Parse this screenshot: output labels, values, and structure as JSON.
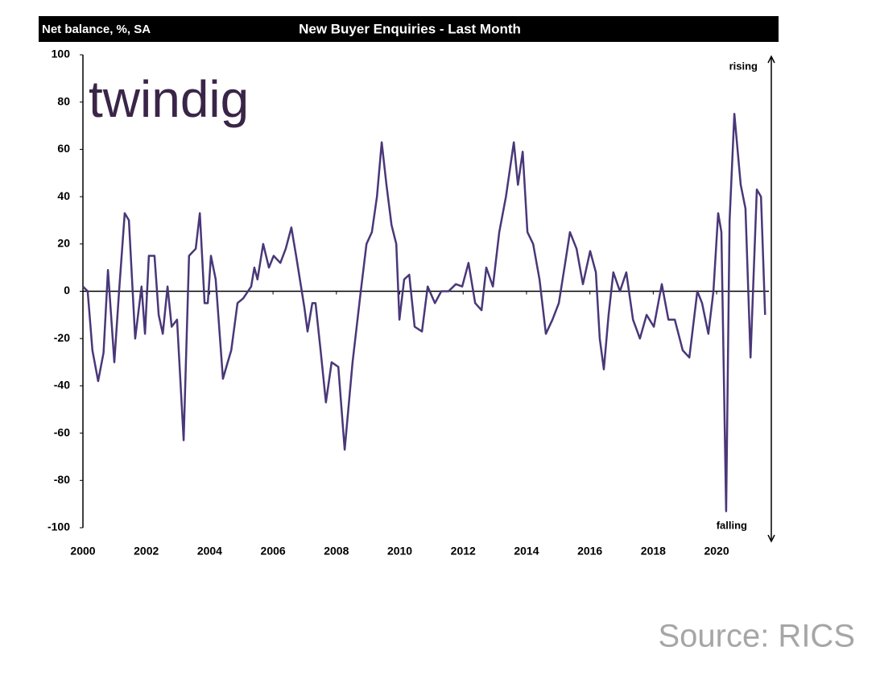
{
  "chart_data": {
    "type": "line",
    "title": "New Buyer Enquiries - Last Month",
    "y_label": "Net balance, %, SA",
    "annotations": [
      "rising",
      "falling"
    ],
    "x": [
      2000.0,
      2000.15,
      2000.3,
      2000.48,
      2000.65,
      2000.79,
      2000.99,
      2001.14,
      2001.32,
      2001.45,
      2001.65,
      2001.85,
      2001.96,
      2002.08,
      2002.26,
      2002.39,
      2002.52,
      2002.67,
      2002.8,
      2002.97,
      2003.18,
      2003.35,
      2003.56,
      2003.69,
      2003.84,
      2003.94,
      2004.04,
      2004.19,
      2004.42,
      2004.57,
      2004.68,
      2004.88,
      2005.06,
      2005.31,
      2005.41,
      2005.51,
      2005.69,
      2005.87,
      2006.02,
      2006.23,
      2006.4,
      2006.58,
      2006.73,
      2006.99,
      2007.09,
      2007.24,
      2007.34,
      2007.5,
      2007.67,
      2007.85,
      2008.06,
      2008.26,
      2008.51,
      2008.77,
      2008.95,
      2009.12,
      2009.28,
      2009.43,
      2009.58,
      2009.74,
      2009.89,
      2009.99,
      2010.14,
      2010.3,
      2010.47,
      2010.7,
      2010.88,
      2011.11,
      2011.31,
      2011.54,
      2011.77,
      2011.97,
      2012.17,
      2012.38,
      2012.58,
      2012.73,
      2012.94,
      2013.14,
      2013.35,
      2013.6,
      2013.73,
      2013.88,
      2014.03,
      2014.21,
      2014.41,
      2014.61,
      2014.82,
      2015.02,
      2015.22,
      2015.37,
      2015.58,
      2015.78,
      2016.01,
      2016.19,
      2016.31,
      2016.44,
      2016.59,
      2016.74,
      2016.95,
      2017.15,
      2017.36,
      2017.58,
      2017.79,
      2018.02,
      2018.27,
      2018.48,
      2018.68,
      2018.93,
      2019.14,
      2019.39,
      2019.54,
      2019.74,
      2019.9,
      2020.05,
      2020.15,
      2020.3,
      2020.41,
      2020.56,
      2020.76,
      2020.91,
      2021.07,
      2021.27,
      2021.4,
      2021.53
    ],
    "values": [
      2,
      0,
      -25,
      -38,
      -26,
      9,
      -30,
      0,
      33,
      30,
      -20,
      2,
      -18,
      15,
      15,
      -10,
      -18,
      2,
      -15,
      -12,
      -63,
      15,
      18,
      33,
      -5,
      -5,
      15,
      5,
      -37,
      -30,
      -25,
      -5,
      -3,
      2,
      10,
      5,
      20,
      10,
      15,
      12,
      18,
      27,
      15,
      -7,
      -17,
      -5,
      -5,
      -25,
      -47,
      -30,
      -32,
      -67,
      -30,
      0,
      20,
      25,
      40,
      63,
      45,
      28,
      20,
      -12,
      5,
      7,
      -15,
      -17,
      2,
      -5,
      0,
      0,
      3,
      2,
      12,
      -5,
      -8,
      10,
      2,
      25,
      40,
      63,
      45,
      59,
      25,
      20,
      5,
      -18,
      -12,
      -5,
      12,
      25,
      18,
      3,
      17,
      8,
      -20,
      -33,
      -10,
      8,
      0,
      8,
      -12,
      -20,
      -10,
      -15,
      3,
      -12,
      -12,
      -25,
      -28,
      0,
      -5,
      -18,
      0,
      33,
      25,
      -93,
      30,
      75,
      45,
      35,
      -28,
      43,
      40,
      -10
    ],
    "color": "#4a3778",
    "xlim": [
      2000,
      2021.65
    ],
    "xticks": [
      2000,
      2002,
      2004,
      2006,
      2008,
      2010,
      2012,
      2014,
      2016,
      2018,
      2020
    ],
    "ylim": [
      -100,
      100
    ],
    "yticks": [
      -100,
      -80,
      -60,
      -40,
      -20,
      0,
      20,
      40,
      60,
      80,
      100
    ]
  },
  "logo": "twindig",
  "source": "Source: RICS"
}
